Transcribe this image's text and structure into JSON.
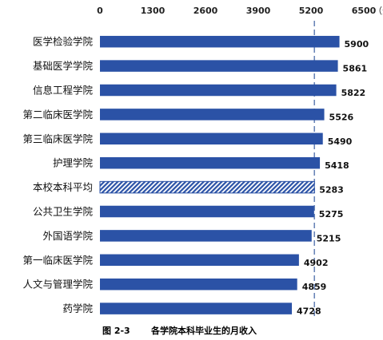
{
  "chart_data": {
    "type": "bar",
    "orientation": "horizontal",
    "unit_label": "（元）",
    "xlim": [
      0,
      6500
    ],
    "ticks": [
      0,
      1300,
      2600,
      3900,
      5200,
      6500
    ],
    "reference_line": 5283,
    "highlight_category": "本校本科平均",
    "categories": [
      "医学检验学院",
      "基础医学学院",
      "信息工程学院",
      "第二临床医学院",
      "第三临床医学院",
      "护理学院",
      "本校本科平均",
      "公共卫生学院",
      "外国语学院",
      "第一临床医学院",
      "人文与管理学院",
      "药学院"
    ],
    "values": [
      5900,
      5861,
      5822,
      5526,
      5490,
      5418,
      5283,
      5275,
      5215,
      4902,
      4859,
      4728
    ],
    "grid": false,
    "legend": "none",
    "colors": {
      "bar": "#2b52a6",
      "highlight_hatch": "#2b52a6",
      "reference_line": "#6b86b8"
    }
  },
  "caption": {
    "number": "图 2-3",
    "text": "各学院本科毕业生的月收入"
  }
}
